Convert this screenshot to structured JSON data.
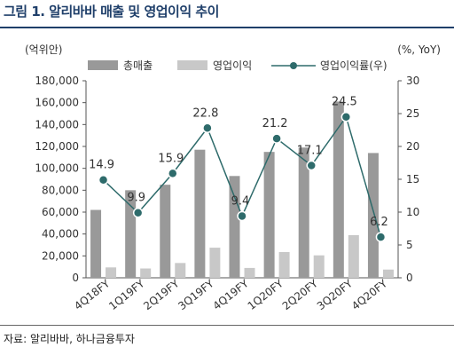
{
  "figure_title": "그림 1. 알리바바 매출 및 영업이익 추이",
  "source": "자료: 알리바바, 하나금융투자",
  "colors": {
    "revenue": "#999999",
    "op": "#c8c8c8",
    "margin": "#2e6b6b",
    "title": "#1f3f6a"
  },
  "chart_data": {
    "type": "bar",
    "categories": [
      "4Q18FY",
      "1Q19FY",
      "2Q19FY",
      "3Q19FY",
      "4Q19FY",
      "1Q20FY",
      "2Q20FY",
      "3Q20FY",
      "4Q20FY"
    ],
    "left_unit": "(억위안)",
    "right_unit": "(%, YoY)",
    "ylim": [
      0,
      180000
    ],
    "y_ticks": [
      "0",
      "20,000",
      "40,000",
      "60,000",
      "80,000",
      "100,000",
      "120,000",
      "140,000",
      "160,000",
      "180,000"
    ],
    "y2lim": [
      0,
      30
    ],
    "y2_ticks": [
      "0",
      "5",
      "10",
      "15",
      "20",
      "25",
      "30"
    ],
    "legend_position": "top",
    "series": [
      {
        "name": "총매출",
        "type": "bar",
        "axis": "left",
        "values": [
          62000,
          80000,
          85000,
          117000,
          93000,
          115000,
          119000,
          161000,
          114000
        ]
      },
      {
        "name": "영업이익",
        "type": "bar",
        "axis": "left",
        "values": [
          9500,
          8500,
          13500,
          27500,
          9000,
          23500,
          20500,
          39000,
          7500
        ]
      },
      {
        "name": "영업이익률(우)",
        "type": "line",
        "axis": "right",
        "values": [
          14.9,
          9.9,
          15.9,
          22.8,
          9.4,
          21.2,
          17.1,
          24.5,
          6.2
        ],
        "labels": [
          "14.9",
          "9.9",
          "15.9",
          "22.8",
          "9.4",
          "21.2",
          "17.1",
          "24.5",
          "6.2"
        ]
      }
    ]
  }
}
